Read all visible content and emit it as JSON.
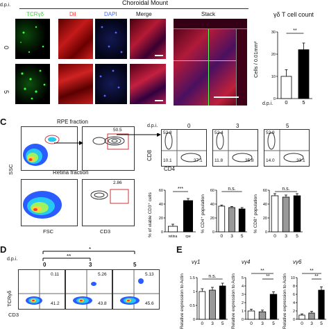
{
  "panel_a": {
    "header": "Choroidal Mount",
    "dpi_label": "d.p.i.",
    "rows": [
      "0",
      "5"
    ],
    "columns": [
      "TCRγδ",
      "DiI",
      "DAPI",
      "Merge",
      "Stack"
    ],
    "column_colors": [
      "#33dd33",
      "#ff3333",
      "#4466ff",
      "#ffffff",
      "#111111"
    ]
  },
  "panel_b": {
    "title": "γδ T cell count",
    "ylabel": "Cells / 0.01mm²",
    "xlabel": "d.p.i.",
    "sig": "**"
  },
  "panel_c": {
    "letter": "C",
    "rpe_label": "RPE fraction",
    "retina_label": "Retina fraction",
    "ssc": "SSC",
    "fsc": "FSC",
    "cd3": "CD3",
    "rpe_gate": "50.5",
    "retina_gate": "2.86",
    "cd8": "CD8",
    "cd4": "CD4",
    "days": [
      "0",
      "3",
      "5"
    ],
    "quadrants": [
      {
        "ul": "52.8",
        "ll": "10.1",
        "lr": "37.1"
      },
      {
        "ul": "52.4",
        "ll": "11.8",
        "lr": "35.8"
      },
      {
        "ul": "52.9",
        "ll": "14.0",
        "lr": "33.1"
      }
    ],
    "viable_ylabel": "% of viable CD3⁺ cells",
    "cd4_ylabel": "% CD4⁺ population",
    "cd8_ylabel": "% CD8⁺ population",
    "sig_viable": "***",
    "ns": "n.s.",
    "dpi": "d.p.i."
  },
  "panel_d": {
    "letter": "D",
    "dpi": "d.p.i.",
    "days": [
      "0",
      "3",
      "5"
    ],
    "tcr": "TCRγδ",
    "cd3": "CD3",
    "sig1": "**",
    "sig2": "*",
    "quadrants": [
      {
        "ur": "0.11",
        "lr": "41.2"
      },
      {
        "ur": "5.26",
        "lr": "43.8"
      },
      {
        "ur": "5.13",
        "lr": "45.6"
      }
    ]
  },
  "panel_e": {
    "letter": "E",
    "titles": [
      "vγ1",
      "vγ4",
      "vγ6"
    ],
    "ylabel": "Relative expression to Actin",
    "ns": "n.s.",
    "sig": "**",
    "dpi": "d.p.i."
  },
  "chart_data": [
    {
      "type": "bar",
      "title": "γδ T cell count",
      "categories": [
        "0",
        "5"
      ],
      "values": [
        10,
        22
      ],
      "errors": [
        3,
        3
      ],
      "colors": [
        "#ffffff",
        "#000000"
      ],
      "xlabel": "d.p.i.",
      "ylabel": "Cells / 0.01mm²",
      "ylim": [
        0,
        30
      ],
      "yticks": [
        0,
        10,
        20,
        30
      ]
    },
    {
      "type": "bar",
      "categories": [
        "retina",
        "rpe"
      ],
      "values": [
        8,
        45
      ],
      "errors": [
        3,
        3
      ],
      "colors": [
        "#ffffff",
        "#000000"
      ],
      "ylabel": "% of viable CD3⁺ cells",
      "ylim": [
        0,
        60
      ],
      "yticks": [
        0,
        20,
        40,
        60
      ]
    },
    {
      "type": "bar",
      "categories": [
        "0",
        "3",
        "5"
      ],
      "values": [
        37,
        35,
        33
      ],
      "errors": [
        1.5,
        1.5,
        2
      ],
      "colors": [
        "#ffffff",
        "#999999",
        "#000000"
      ],
      "ylabel": "% CD4⁺ population",
      "ylim": [
        0,
        60
      ],
      "yticks": [
        0,
        20,
        40,
        60
      ]
    },
    {
      "type": "bar",
      "categories": [
        "0",
        "3",
        "5"
      ],
      "values": [
        52,
        50,
        52
      ],
      "errors": [
        3,
        3,
        3
      ],
      "colors": [
        "#ffffff",
        "#999999",
        "#000000"
      ],
      "ylabel": "% CD8⁺ population",
      "ylim": [
        0,
        60
      ],
      "yticks": [
        0,
        20,
        40,
        60
      ]
    },
    {
      "type": "bar",
      "title": "vγ1",
      "categories": [
        "0",
        "3",
        "5"
      ],
      "values": [
        1.0,
        1.05,
        1.2
      ],
      "errors": [
        0.1,
        0.1,
        0.1
      ],
      "colors": [
        "#ffffff",
        "#999999",
        "#000000"
      ],
      "ylim": [
        0,
        1.5
      ],
      "yticks": [
        0.0,
        0.5,
        1.0,
        1.5
      ]
    },
    {
      "type": "bar",
      "title": "vγ4",
      "categories": [
        "0",
        "3",
        "5"
      ],
      "values": [
        1.0,
        0.9,
        3.0
      ],
      "errors": [
        0.2,
        0.2,
        0.3
      ],
      "colors": [
        "#ffffff",
        "#999999",
        "#000000"
      ],
      "ylim": [
        0,
        5
      ],
      "yticks": [
        0,
        1,
        2,
        3,
        4,
        5
      ]
    },
    {
      "type": "bar",
      "title": "vγ6",
      "categories": [
        "0",
        "3",
        "5"
      ],
      "values": [
        1.0,
        1.5,
        7.0
      ],
      "errors": [
        0.3,
        0.4,
        0.8
      ],
      "colors": [
        "#ffffff",
        "#999999",
        "#000000"
      ],
      "ylim": [
        0,
        10
      ],
      "yticks": [
        0,
        2,
        4,
        6,
        8,
        10
      ]
    }
  ]
}
